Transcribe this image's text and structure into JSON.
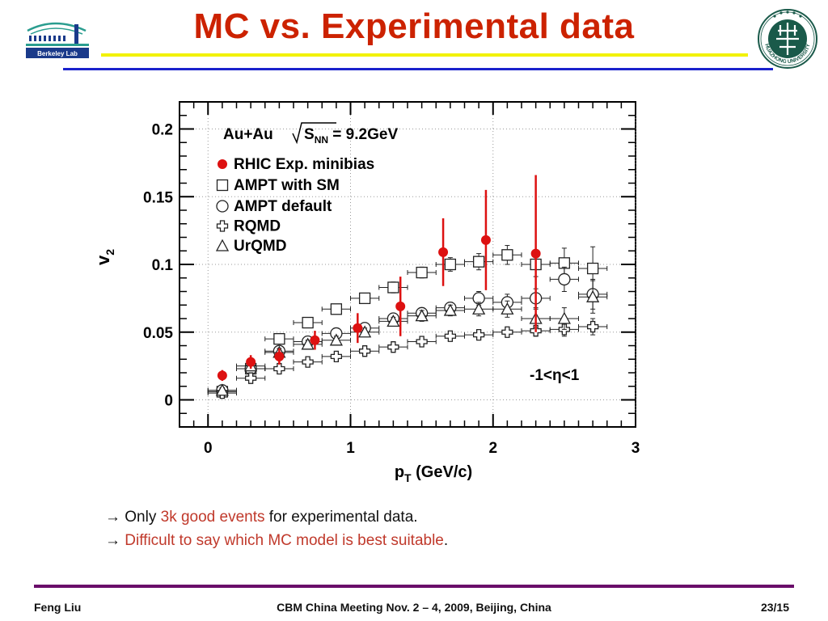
{
  "slide": {
    "title": "MC vs. Experimental data",
    "author": "Feng Liu",
    "meeting": "CBM China Meeting Nov. 2 – 4, 2009, Beijing, China",
    "page": "23/15",
    "berkeley_logo_text": "Berkeley Lab",
    "hust_logo_text": "HUAZHONG UNIVERSITY"
  },
  "bullets": [
    {
      "arrow": "→",
      "pre": " Only ",
      "highlight": "3k good events",
      "post": " for experimental data."
    },
    {
      "arrow": "→",
      "pre": " ",
      "highlight": "Difficult to say which MC model is best suitable",
      "post": "."
    }
  ],
  "colors": {
    "title": "#cc2200",
    "highlight": "#c0392b",
    "exp": "#dd1111",
    "mc": "#222222"
  },
  "chart_data": {
    "type": "scatter",
    "xlabel_main": "p",
    "xlabel_sub": "T",
    "xlabel_unit": " (GeV/c)",
    "ylabel_main": "v",
    "ylabel_sub": "2",
    "xlim": [
      -0.2,
      3.0
    ],
    "ylim": [
      -0.02,
      0.22
    ],
    "xticks": [
      "0",
      "1",
      "2",
      "3"
    ],
    "yticks": [
      "0",
      "0.05",
      "0.1",
      "0.15",
      "0.2"
    ],
    "annotation_system": "Au+Au",
    "annotation_sqrt": "S",
    "annotation_sqrt_sub": "NN",
    "annotation_energy": " = 9.2GeV",
    "annotation_eta": "-1<η<1",
    "legend_position": "top-left",
    "series": [
      {
        "name": "RHIC Exp. minibias",
        "marker": "filled-circle",
        "color": "#dd1111",
        "x": [
          0.1,
          0.3,
          0.5,
          0.75,
          1.05,
          1.35,
          1.65,
          1.95,
          2.3
        ],
        "y": [
          0.018,
          0.028,
          0.032,
          0.044,
          0.053,
          0.069,
          0.109,
          0.118,
          0.108
        ],
        "yerr": [
          0.004,
          0.005,
          0.006,
          0.007,
          0.011,
          0.022,
          0.025,
          0.037,
          0.058
        ]
      },
      {
        "name": "AMPT with SM",
        "marker": "open-square",
        "color": "#222222",
        "x": [
          0.1,
          0.3,
          0.5,
          0.7,
          0.9,
          1.1,
          1.3,
          1.5,
          1.7,
          1.9,
          2.1,
          2.3,
          2.5,
          2.7
        ],
        "y": [
          0.006,
          0.023,
          0.045,
          0.057,
          0.067,
          0.075,
          0.083,
          0.094,
          0.1,
          0.102,
          0.107,
          0.1,
          0.101,
          0.097
        ],
        "yerr": [
          0.002,
          0.003,
          0.003,
          0.003,
          0.003,
          0.003,
          0.004,
          0.004,
          0.005,
          0.006,
          0.007,
          0.009,
          0.011,
          0.016
        ]
      },
      {
        "name": "AMPT default",
        "marker": "open-circle",
        "color": "#222222",
        "x": [
          0.1,
          0.3,
          0.5,
          0.7,
          0.9,
          1.1,
          1.3,
          1.5,
          1.7,
          1.9,
          2.1,
          2.3,
          2.5,
          2.7
        ],
        "y": [
          0.007,
          0.023,
          0.036,
          0.043,
          0.049,
          0.053,
          0.06,
          0.064,
          0.068,
          0.075,
          0.072,
          0.075,
          0.089,
          0.078
        ],
        "yerr": [
          0.002,
          0.002,
          0.003,
          0.003,
          0.003,
          0.003,
          0.003,
          0.004,
          0.004,
          0.005,
          0.006,
          0.007,
          0.009,
          0.011
        ]
      },
      {
        "name": "RQMD",
        "marker": "open-cross",
        "color": "#222222",
        "x": [
          0.1,
          0.3,
          0.5,
          0.7,
          0.9,
          1.1,
          1.3,
          1.5,
          1.7,
          1.9,
          2.1,
          2.3,
          2.5,
          2.7
        ],
        "y": [
          0.005,
          0.016,
          0.023,
          0.028,
          0.032,
          0.036,
          0.039,
          0.043,
          0.047,
          0.048,
          0.05,
          0.051,
          0.052,
          0.054
        ],
        "yerr": [
          0.001,
          0.002,
          0.002,
          0.002,
          0.002,
          0.002,
          0.002,
          0.002,
          0.003,
          0.003,
          0.003,
          0.004,
          0.005,
          0.006
        ]
      },
      {
        "name": "UrQMD",
        "marker": "open-triangle",
        "color": "#222222",
        "x": [
          0.1,
          0.3,
          0.5,
          0.7,
          0.9,
          1.1,
          1.3,
          1.5,
          1.7,
          1.9,
          2.1,
          2.3,
          2.5,
          2.7
        ],
        "y": [
          0.007,
          0.025,
          0.035,
          0.041,
          0.044,
          0.05,
          0.058,
          0.062,
          0.066,
          0.067,
          0.067,
          0.06,
          0.06,
          0.076
        ],
        "yerr": [
          0.002,
          0.002,
          0.003,
          0.003,
          0.003,
          0.003,
          0.003,
          0.004,
          0.004,
          0.005,
          0.006,
          0.007,
          0.008,
          0.012
        ]
      }
    ]
  }
}
